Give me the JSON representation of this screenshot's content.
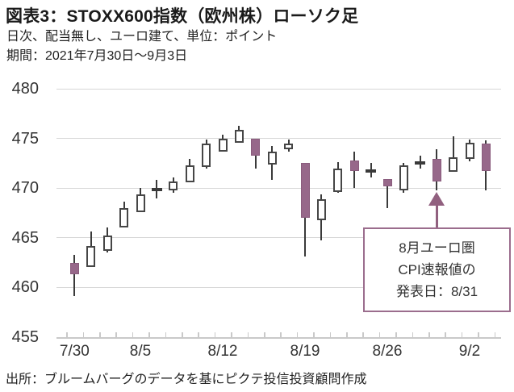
{
  "header": {
    "title": "図表3：STOXX600指数（欧州株）ローソク足",
    "subtitle": "日次、配当無し、ユーロ建て、単位：ポイント",
    "period": "期間：2021年7月30日～9月3日"
  },
  "footer": {
    "source": "出所：ブルームバーグのデータを基にピクテ投信投資顧問作成"
  },
  "annotation": {
    "lines": [
      "8月ユーロ圏",
      "CPI速報値の",
      "発表日：8/31"
    ],
    "target_date": "8/31"
  },
  "colors": {
    "down_fill": "#97688a",
    "up_fill": "#ffffff",
    "candle_outline": "#464646",
    "wick": "#3a3a3a",
    "grid": "#d7d7d7",
    "annotation_border": "#9b6d8d",
    "arrow": "#91607f"
  },
  "chart_data": {
    "type": "candlestick",
    "title": "図表3：STOXX600指数（欧州株）ローソク足",
    "unit": "ポイント",
    "grid": "horizontal",
    "ylim": [
      455,
      480
    ],
    "yticks": [
      480,
      475,
      470,
      465,
      460,
      455
    ],
    "xtick_labels": [
      "7/30",
      "8/5",
      "8/12",
      "8/19",
      "8/26",
      "9/2"
    ],
    "xtick_indices": [
      0,
      4,
      9,
      14,
      19,
      24
    ],
    "dates": [
      "7/30",
      "8/2",
      "8/3",
      "8/4",
      "8/5",
      "8/6",
      "8/9",
      "8/10",
      "8/11",
      "8/12",
      "8/13",
      "8/16",
      "8/17",
      "8/18",
      "8/19",
      "8/20",
      "8/23",
      "8/24",
      "8/25",
      "8/26",
      "8/27",
      "8/30",
      "8/31",
      "9/1",
      "9/2",
      "9/3"
    ],
    "ohlc": [
      [
        462.5,
        463.3,
        459.1,
        461.3
      ],
      [
        462.1,
        465.6,
        462.1,
        464.2
      ],
      [
        463.7,
        466.0,
        463.5,
        465.2
      ],
      [
        466.0,
        468.6,
        466.0,
        468.0
      ],
      [
        467.6,
        470.0,
        467.6,
        469.4
      ],
      [
        469.8,
        470.8,
        469.0,
        469.9
      ],
      [
        469.8,
        471.1,
        469.5,
        470.7
      ],
      [
        470.6,
        472.9,
        470.6,
        472.3
      ],
      [
        472.1,
        474.9,
        472.0,
        474.5
      ],
      [
        473.7,
        475.4,
        473.7,
        475.0
      ],
      [
        474.6,
        476.3,
        474.6,
        475.9
      ],
      [
        475.0,
        475.0,
        472.0,
        473.3
      ],
      [
        472.4,
        474.2,
        470.8,
        473.7
      ],
      [
        473.9,
        474.9,
        473.7,
        474.5
      ],
      [
        472.5,
        472.5,
        463.1,
        467.0
      ],
      [
        466.8,
        469.4,
        464.7,
        468.9
      ],
      [
        469.6,
        472.6,
        469.5,
        472.0
      ],
      [
        472.8,
        473.7,
        470.0,
        471.7
      ],
      [
        471.7,
        472.5,
        471.1,
        471.8
      ],
      [
        470.9,
        470.9,
        468.0,
        470.2
      ],
      [
        469.8,
        472.5,
        469.5,
        472.3
      ],
      [
        472.5,
        473.3,
        472.0,
        472.6
      ],
      [
        472.9,
        473.9,
        469.8,
        470.7
      ],
      [
        471.6,
        475.2,
        471.6,
        473.1
      ],
      [
        472.9,
        474.9,
        472.7,
        474.6
      ],
      [
        474.5,
        474.8,
        469.8,
        471.7
      ]
    ]
  }
}
